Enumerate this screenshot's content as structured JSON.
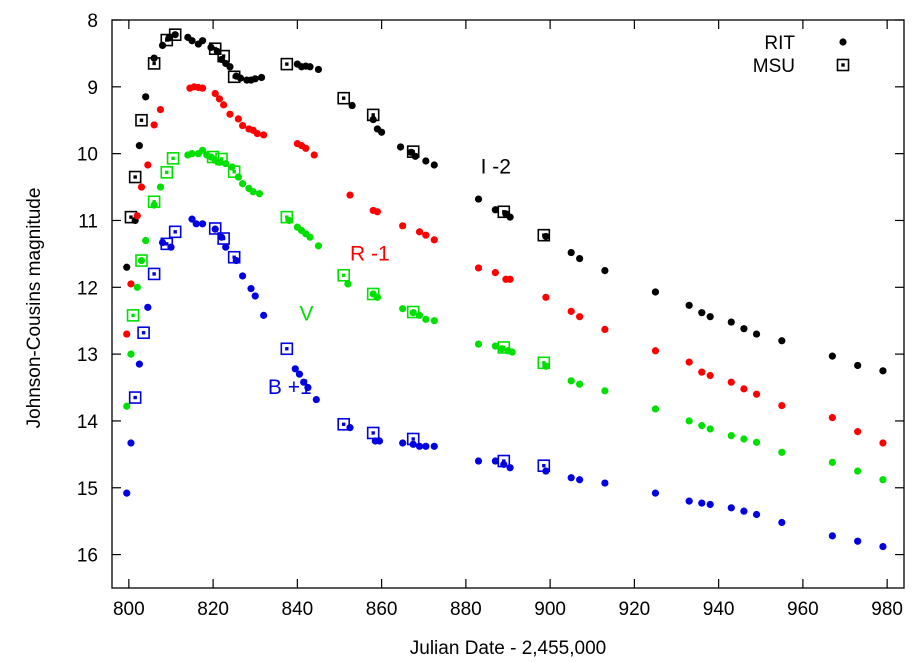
{
  "chart_data": {
    "type": "scatter",
    "xlabel": "Julian Date - 2,455,000",
    "ylabel": "Johnson-Cousins magnitude",
    "xlim": [
      796,
      984
    ],
    "ylim": [
      16.5,
      8
    ],
    "y_inverted": true,
    "xticks": [
      "800",
      "820",
      "840",
      "860",
      "880",
      "900",
      "920",
      "940",
      "960",
      "980"
    ],
    "yticks": [
      "8",
      "9",
      "10",
      "11",
      "12",
      "13",
      "14",
      "15",
      "16"
    ],
    "legend": {
      "placement": "top-right",
      "entries": [
        {
          "label": "RIT",
          "marker": "filled-circle"
        },
        {
          "label": "MSU",
          "marker": "open-square"
        }
      ]
    },
    "series": [
      {
        "name": "I -2",
        "color": "#000000",
        "label_at": [
          883.5,
          10.3
        ],
        "rit": [
          [
            799.5,
            11.7
          ],
          [
            801.5,
            11.0
          ],
          [
            802.5,
            9.88
          ],
          [
            804,
            9.15
          ],
          [
            806,
            8.57
          ],
          [
            808,
            8.38
          ],
          [
            809.5,
            8.27
          ],
          [
            811,
            8.22
          ],
          [
            814,
            8.26
          ],
          [
            815,
            8.31
          ],
          [
            816.5,
            8.36
          ],
          [
            817.5,
            8.31
          ],
          [
            819.5,
            8.41
          ],
          [
            821,
            8.47
          ],
          [
            822,
            8.59
          ],
          [
            823,
            8.65
          ],
          [
            824,
            8.7
          ],
          [
            825.5,
            8.84
          ],
          [
            826.5,
            8.87
          ],
          [
            828,
            8.9
          ],
          [
            829,
            8.9
          ],
          [
            830,
            8.88
          ],
          [
            831.5,
            8.86
          ],
          [
            840,
            8.66
          ],
          [
            841,
            8.7
          ],
          [
            842,
            8.69
          ],
          [
            843,
            8.7
          ],
          [
            845,
            8.74
          ],
          [
            853,
            9.28
          ],
          [
            858,
            9.49
          ],
          [
            859,
            9.63
          ],
          [
            860,
            9.68
          ],
          [
            864.5,
            9.9
          ],
          [
            867,
            9.98
          ],
          [
            868,
            10.04
          ],
          [
            870.5,
            10.11
          ],
          [
            872.5,
            10.17
          ],
          [
            883,
            10.68
          ],
          [
            887,
            10.84
          ],
          [
            889.5,
            10.9
          ],
          [
            890.5,
            10.95
          ],
          [
            899,
            11.24
          ],
          [
            905,
            11.48
          ],
          [
            907,
            11.57
          ],
          [
            913,
            11.75
          ],
          [
            925,
            12.07
          ],
          [
            933,
            12.27
          ],
          [
            936,
            12.38
          ],
          [
            938,
            12.44
          ],
          [
            943,
            12.52
          ],
          [
            946,
            12.62
          ],
          [
            949,
            12.7
          ],
          [
            955,
            12.8
          ],
          [
            967,
            13.03
          ],
          [
            973,
            13.17
          ],
          [
            979,
            13.25
          ]
        ],
        "msu": [
          [
            800.5,
            10.95
          ],
          [
            801.5,
            10.35
          ],
          [
            803,
            9.5
          ],
          [
            806,
            8.65
          ],
          [
            809,
            8.3
          ],
          [
            811,
            8.22
          ],
          [
            820.5,
            8.43
          ],
          [
            822.5,
            8.54
          ],
          [
            825,
            8.85
          ],
          [
            837.5,
            8.66
          ],
          [
            851,
            9.17
          ],
          [
            858,
            9.42
          ],
          [
            867.5,
            9.97
          ],
          [
            889,
            10.87
          ],
          [
            898.5,
            11.22
          ]
        ]
      },
      {
        "name": "R -1",
        "color": "#ff0000",
        "label_at": [
          852.5,
          11.6
        ],
        "rit": [
          [
            799.5,
            12.7
          ],
          [
            800.5,
            11.95
          ],
          [
            802,
            10.93
          ],
          [
            803,
            10.5
          ],
          [
            804.5,
            10.17
          ],
          [
            806,
            9.57
          ],
          [
            807.5,
            9.34
          ],
          [
            814.5,
            9.02
          ],
          [
            815.5,
            9.0
          ],
          [
            816.5,
            9.01
          ],
          [
            817.5,
            9.02
          ],
          [
            820.5,
            9.1
          ],
          [
            821.5,
            9.18
          ],
          [
            822.5,
            9.27
          ],
          [
            824,
            9.41
          ],
          [
            826,
            9.48
          ],
          [
            827,
            9.58
          ],
          [
            828.5,
            9.63
          ],
          [
            829.5,
            9.65
          ],
          [
            830.5,
            9.7
          ],
          [
            832,
            9.72
          ],
          [
            840,
            9.85
          ],
          [
            841,
            9.88
          ],
          [
            842,
            9.92
          ],
          [
            844,
            10.02
          ],
          [
            852.5,
            10.62
          ],
          [
            858,
            10.85
          ],
          [
            859,
            10.87
          ],
          [
            865,
            11.08
          ],
          [
            869,
            11.17
          ],
          [
            870.5,
            11.22
          ],
          [
            872.5,
            11.29
          ],
          [
            883,
            11.71
          ],
          [
            887,
            11.78
          ],
          [
            889.5,
            11.88
          ],
          [
            890.5,
            11.88
          ],
          [
            899,
            12.15
          ],
          [
            905,
            12.36
          ],
          [
            907,
            12.44
          ],
          [
            913,
            12.63
          ],
          [
            925,
            12.95
          ],
          [
            933,
            13.12
          ],
          [
            936,
            13.27
          ],
          [
            938,
            13.32
          ],
          [
            943,
            13.42
          ],
          [
            946,
            13.52
          ],
          [
            949,
            13.6
          ],
          [
            955,
            13.77
          ],
          [
            967,
            13.95
          ],
          [
            973,
            14.16
          ],
          [
            979,
            14.33
          ]
        ],
        "msu": []
      },
      {
        "name": "V",
        "color": "#00e000",
        "label_at": [
          840.5,
          12.5
        ],
        "rit": [
          [
            799.5,
            13.78
          ],
          [
            800.5,
            13.0
          ],
          [
            802,
            12.0
          ],
          [
            803,
            11.6
          ],
          [
            804,
            11.3
          ],
          [
            806,
            10.77
          ],
          [
            807.5,
            10.5
          ],
          [
            814,
            10.02
          ],
          [
            815,
            10.0
          ],
          [
            816.5,
            10.0
          ],
          [
            817.5,
            9.95
          ],
          [
            818.5,
            10.02
          ],
          [
            819.5,
            10.05
          ],
          [
            820.5,
            10.1
          ],
          [
            821.5,
            10.13
          ],
          [
            823,
            10.15
          ],
          [
            824.5,
            10.2
          ],
          [
            826,
            10.35
          ],
          [
            827,
            10.45
          ],
          [
            828.5,
            10.52
          ],
          [
            829.5,
            10.57
          ],
          [
            831,
            10.6
          ],
          [
            838,
            11.0
          ],
          [
            840,
            11.1
          ],
          [
            841,
            11.15
          ],
          [
            842,
            11.2
          ],
          [
            843,
            11.25
          ],
          [
            845,
            11.38
          ],
          [
            852,
            11.95
          ],
          [
            858,
            12.1
          ],
          [
            859,
            12.15
          ],
          [
            865,
            12.32
          ],
          [
            867.5,
            12.38
          ],
          [
            869,
            12.42
          ],
          [
            870.5,
            12.48
          ],
          [
            872.5,
            12.5
          ],
          [
            883,
            12.85
          ],
          [
            887,
            12.88
          ],
          [
            888.5,
            12.92
          ],
          [
            890,
            12.95
          ],
          [
            891,
            12.97
          ],
          [
            899,
            13.18
          ],
          [
            905,
            13.4
          ],
          [
            907,
            13.45
          ],
          [
            913,
            13.55
          ],
          [
            925,
            13.82
          ],
          [
            933,
            14.0
          ],
          [
            936,
            14.07
          ],
          [
            938,
            14.12
          ],
          [
            943,
            14.22
          ],
          [
            946,
            14.27
          ],
          [
            949,
            14.32
          ],
          [
            955,
            14.47
          ],
          [
            967,
            14.62
          ],
          [
            973,
            14.75
          ],
          [
            979,
            14.88
          ]
        ],
        "msu": [
          [
            801,
            12.42
          ],
          [
            803,
            11.6
          ],
          [
            806,
            10.72
          ],
          [
            809,
            10.28
          ],
          [
            810.5,
            10.07
          ],
          [
            820,
            10.05
          ],
          [
            822,
            10.08
          ],
          [
            825,
            10.27
          ],
          [
            837.5,
            10.95
          ],
          [
            851,
            11.82
          ],
          [
            858,
            12.1
          ],
          [
            867.5,
            12.37
          ],
          [
            889,
            12.9
          ],
          [
            898.5,
            13.13
          ]
        ]
      },
      {
        "name": "B +1",
        "color": "#0000e0",
        "label_at": [
          833,
          13.6
        ],
        "rit": [
          [
            799.5,
            15.08
          ],
          [
            800.5,
            14.33
          ],
          [
            802.5,
            13.15
          ],
          [
            804.5,
            12.3
          ],
          [
            808,
            11.33
          ],
          [
            810,
            11.4
          ],
          [
            815,
            10.98
          ],
          [
            816,
            11.05
          ],
          [
            817.5,
            11.05
          ],
          [
            820.5,
            11.13
          ],
          [
            822,
            11.25
          ],
          [
            823,
            11.4
          ],
          [
            825.5,
            11.6
          ],
          [
            827,
            11.83
          ],
          [
            829,
            12.02
          ],
          [
            830,
            12.13
          ],
          [
            832,
            12.42
          ],
          [
            839.5,
            13.22
          ],
          [
            840.5,
            13.3
          ],
          [
            841.5,
            13.42
          ],
          [
            842.5,
            13.5
          ],
          [
            844.5,
            13.68
          ],
          [
            852.5,
            14.1
          ],
          [
            858.5,
            14.3
          ],
          [
            859.5,
            14.3
          ],
          [
            865,
            14.33
          ],
          [
            867.5,
            14.35
          ],
          [
            869,
            14.38
          ],
          [
            870.5,
            14.38
          ],
          [
            872.5,
            14.38
          ],
          [
            883,
            14.6
          ],
          [
            887,
            14.6
          ],
          [
            889,
            14.65
          ],
          [
            890.5,
            14.7
          ],
          [
            899,
            14.75
          ],
          [
            905,
            14.85
          ],
          [
            907,
            14.88
          ],
          [
            913,
            14.93
          ],
          [
            925,
            15.08
          ],
          [
            933,
            15.2
          ],
          [
            936,
            15.23
          ],
          [
            938,
            15.25
          ],
          [
            943,
            15.3
          ],
          [
            946,
            15.35
          ],
          [
            949,
            15.4
          ],
          [
            955,
            15.52
          ],
          [
            967,
            15.72
          ],
          [
            973,
            15.8
          ],
          [
            979,
            15.88
          ]
        ],
        "msu": [
          [
            801.5,
            13.65
          ],
          [
            803.5,
            12.68
          ],
          [
            806,
            11.8
          ],
          [
            809,
            11.35
          ],
          [
            811,
            11.17
          ],
          [
            820.5,
            11.12
          ],
          [
            822.5,
            11.27
          ],
          [
            825,
            11.55
          ],
          [
            837.5,
            12.92
          ],
          [
            851,
            14.05
          ],
          [
            858,
            14.18
          ],
          [
            867.5,
            14.27
          ],
          [
            889,
            14.6
          ],
          [
            898.5,
            14.67
          ]
        ]
      }
    ]
  }
}
